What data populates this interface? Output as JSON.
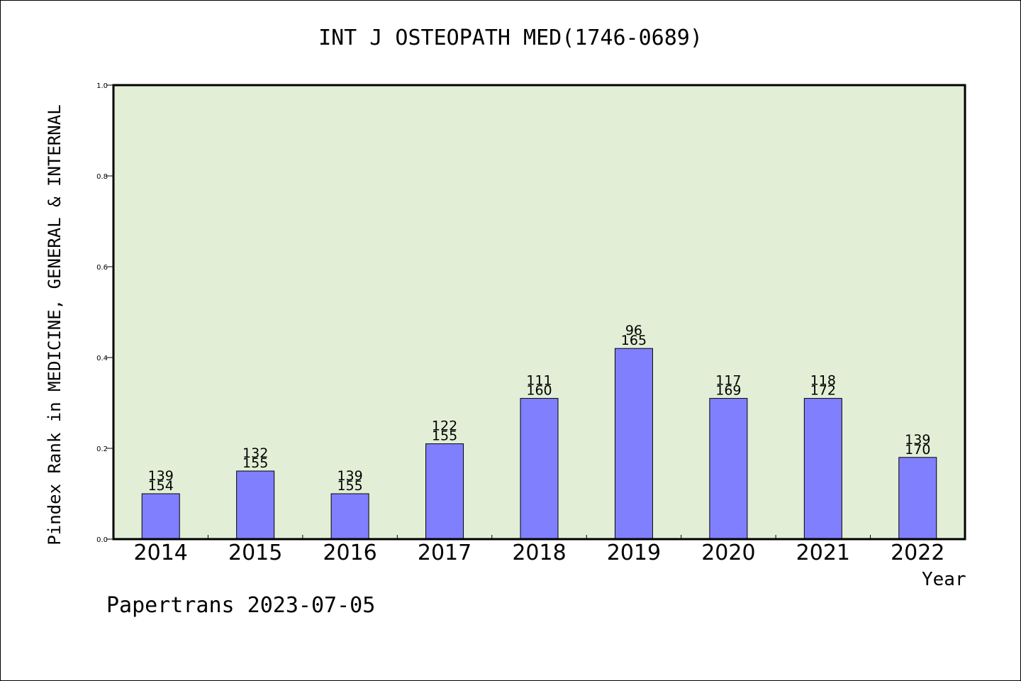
{
  "chart_data": {
    "type": "bar",
    "title": "INT J OSTEOPATH MED(1746-0689)",
    "xlabel": "Year",
    "ylabel": "Pindex Rank in MEDICINE, GENERAL & INTERNAL",
    "categories": [
      "2014",
      "2015",
      "2016",
      "2017",
      "2018",
      "2019",
      "2020",
      "2021",
      "2022"
    ],
    "values": [
      0.1,
      0.15,
      0.1,
      0.21,
      0.31,
      0.42,
      0.31,
      0.31,
      0.18
    ],
    "rank_labels": [
      "139",
      "132",
      "139",
      "122",
      "111",
      "96",
      "117",
      "118",
      "139"
    ],
    "total_labels": [
      "154",
      "155",
      "155",
      "155",
      "160",
      "165",
      "169",
      "172",
      "170"
    ],
    "ylim": [
      0,
      1.0
    ],
    "yticks": [
      "0.0",
      "0.2",
      "0.4",
      "0.6",
      "0.8",
      "1.0"
    ],
    "grid": false,
    "colors": {
      "plot_background": "#e2efd6",
      "bar_fill": "#8080ff",
      "bar_stroke": "#000000"
    }
  },
  "footer": "Papertrans 2023-07-05"
}
